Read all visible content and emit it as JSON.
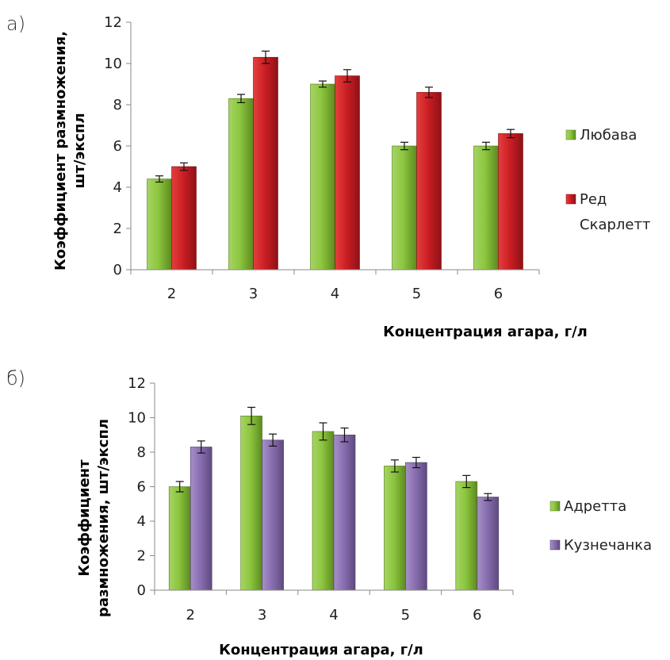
{
  "panels": {
    "a": "а)",
    "b": "б)"
  },
  "chart_data": [
    {
      "type": "bar",
      "panel_label": "а)",
      "categories": [
        "2",
        "3",
        "4",
        "5",
        "6"
      ],
      "series": [
        {
          "name": "Любава",
          "values": [
            4.4,
            8.3,
            9.0,
            6.0,
            6.0
          ],
          "errors": [
            0.15,
            0.2,
            0.15,
            0.18,
            0.18
          ],
          "color": "#8cc63f"
        },
        {
          "name": "Ред Скарлетт",
          "values": [
            5.0,
            10.3,
            9.4,
            8.6,
            6.6
          ],
          "errors": [
            0.18,
            0.3,
            0.3,
            0.25,
            0.2
          ],
          "color": "#d42226"
        }
      ],
      "legend_lines": [
        [
          "Любава"
        ],
        [
          "Ред",
          "Скарлетт"
        ]
      ],
      "xlabel": "Концентрация агара, г/л",
      "ylabel_lines": [
        "Коэффициент размножения,",
        "шт/экспл"
      ],
      "ylim": [
        0,
        12
      ],
      "yticks": [
        "0",
        "2",
        "4",
        "6",
        "8",
        "10",
        "12"
      ],
      "legend_position": "right",
      "grid": false
    },
    {
      "type": "bar",
      "panel_label": "б)",
      "categories": [
        "2",
        "3",
        "4",
        "5",
        "6"
      ],
      "series": [
        {
          "name": "Адретта",
          "values": [
            6.0,
            10.1,
            9.2,
            7.2,
            6.3
          ],
          "errors": [
            0.3,
            0.5,
            0.5,
            0.35,
            0.35
          ],
          "color": "#8cc63f"
        },
        {
          "name": "Кузнечанка",
          "values": [
            8.3,
            8.7,
            9.0,
            7.4,
            5.4
          ],
          "errors": [
            0.35,
            0.35,
            0.4,
            0.3,
            0.2
          ],
          "color": "#8a6fb0"
        }
      ],
      "legend_lines": [
        [
          "Адретта"
        ],
        [
          "Кузнечанка"
        ]
      ],
      "xlabel": "Концентрация агара, г/л",
      "ylabel_lines": [
        "Коэффициент",
        "размножения, шт/экспл"
      ],
      "ylim": [
        0,
        12
      ],
      "yticks": [
        "0",
        "2",
        "4",
        "6",
        "8",
        "10",
        "12"
      ],
      "legend_position": "right",
      "grid": false
    }
  ]
}
